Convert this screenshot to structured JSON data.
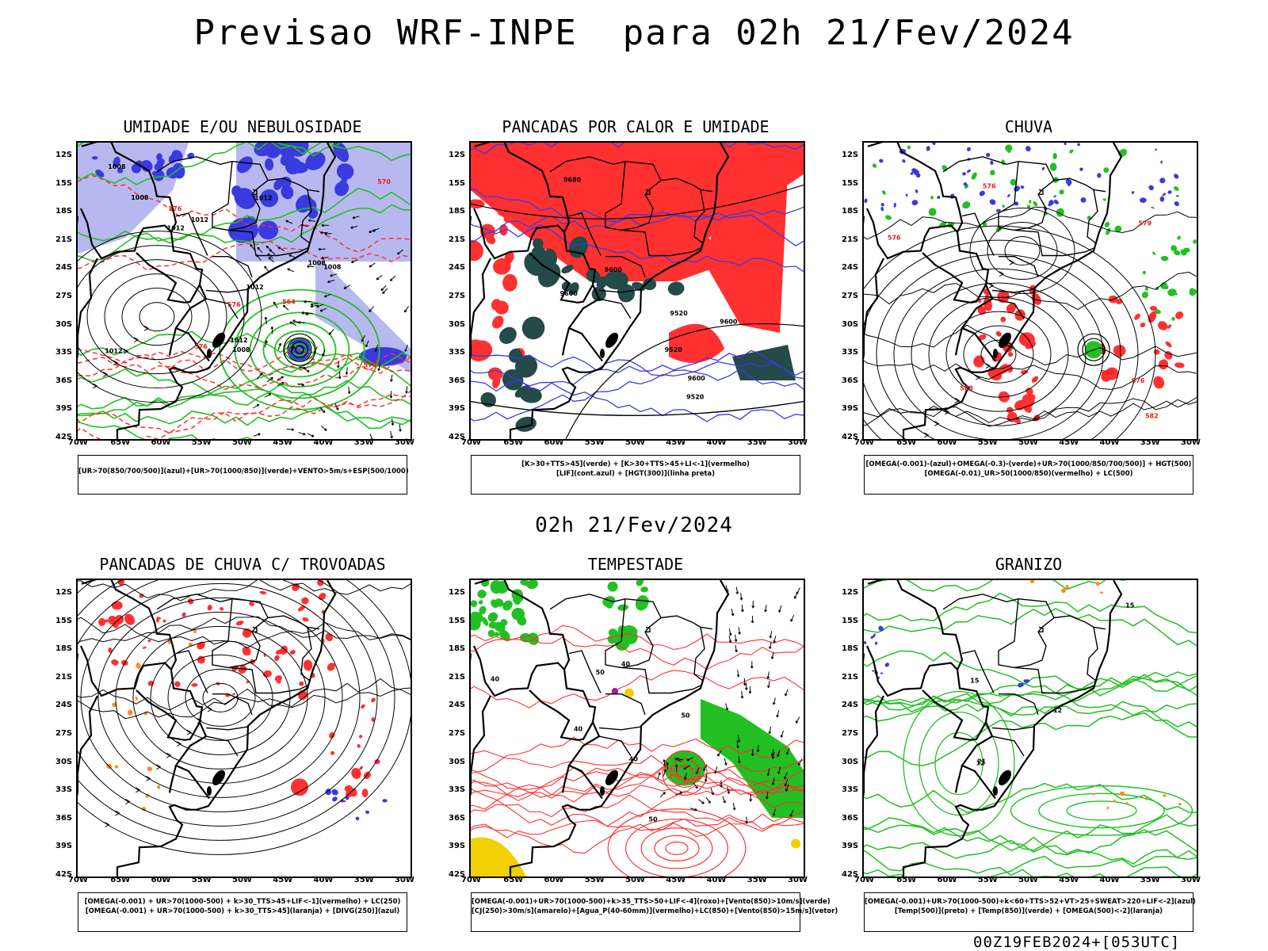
{
  "main_title": "Previsao WRF-INPE  para 02h 21/Fev/2024",
  "mid_title": "02h 21/Fev/2024",
  "footer": "00Z19FEB2024+[053UTC]",
  "colors": {
    "blue": "#3a3ae0",
    "lightblue": "#b8b8f0",
    "green": "#22c022",
    "red": "#ff3030",
    "darkteal": "#244a4a",
    "orange": "#ff8c1a",
    "yellow": "#f0d000",
    "purple": "#9900cc"
  },
  "chart_data": {
    "type": "map",
    "axes": {
      "lat_ticks": [
        "12S",
        "15S",
        "18S",
        "21S",
        "24S",
        "27S",
        "30S",
        "33S",
        "36S",
        "39S",
        "42S"
      ],
      "lon_ticks": [
        "70W",
        "65W",
        "60W",
        "55W",
        "50W",
        "45W",
        "40W",
        "35W",
        "30W"
      ]
    },
    "panels": [
      {
        "id": "umidade",
        "title": "UMIDADE E/OU NEBULOSIDADE",
        "legend": [
          "[UR>70(850/700/500)](azul)+[UR>70(1000/850)](verde)+VENTO>5m/s+ESP(500/1000)"
        ],
        "contour_labels": [
          "1012",
          "1012",
          "1012",
          "1008",
          "1008",
          "1008",
          "1012",
          "1012",
          "1008",
          "1008",
          "1012",
          "576",
          "576",
          "570",
          "570",
          "564",
          "576"
        ]
      },
      {
        "id": "pancadas_calor",
        "title": "PANCADAS POR CALOR E UMIDADE",
        "legend": [
          "[K>30+TTS>45](verde) + [K>30+TTS>45+LI<-1](vermelho)",
          "[LIF](cont.azul) + [HGT(300)](linha preta)"
        ],
        "contour_labels": [
          "9680",
          "9600",
          "9520",
          "9600",
          "9600",
          "9600",
          "9520",
          "9520"
        ]
      },
      {
        "id": "chuva",
        "title": "CHUVA",
        "legend": [
          "[OMEGA(-0.001)-(azul)+OMEGA(-0.3)-(verde)+UR>70(1000/850/700/500)] + HGT(500)",
          "[OMEGA(-0.01)_UR>50(1000/850)(vermelho) + LC(500)"
        ],
        "contour_labels": [
          "588",
          "582",
          "576",
          "582",
          "576",
          "576",
          "579"
        ]
      },
      {
        "id": "pancadas_trovoadas",
        "title": "PANCADAS DE CHUVA C/ TROVOADAS",
        "legend": [
          "[OMEGA(-0.001) + UR>70(1000-500) + k>30_TTS>45+LIF<-1](vermelho) + LC(250)",
          "[OMEGA(-0.001) + UR>70(1000-500) + k>30_TTS>45](laranja) + [DIVG(250)](azul)"
        ],
        "contour_labels": []
      },
      {
        "id": "tempestade",
        "title": "TEMPESTADE",
        "legend": [
          "[OMEGA(-0.001)+UR>70(1000-500)+k>35_TTS>50+LIF<-4](roxo)+[Vento(850)>10m/s](verde)",
          "[CJ(250)>30m/s](amarelo)+[Agua_P(40-60mm)](vermelho)+LC(850)+[Vento(850)>15m/s](vetor)"
        ],
        "contour_labels": [
          "40",
          "50",
          "50",
          "40",
          "50",
          "40",
          "40"
        ]
      },
      {
        "id": "granizo",
        "title": "GRANIZO",
        "legend": [
          "[OMEGA(-0.001)+UR>70(1000-500)+k<60+TTS>52+VT>25+SWEAT>220+LIF<-2](azul)",
          "[Temp(500)](preto) + [Temp(850)](verde) + [OMEGA(500)<-2](laranja)"
        ],
        "contour_labels": [
          "15",
          "12",
          "21",
          "15",
          "12"
        ]
      }
    ]
  }
}
